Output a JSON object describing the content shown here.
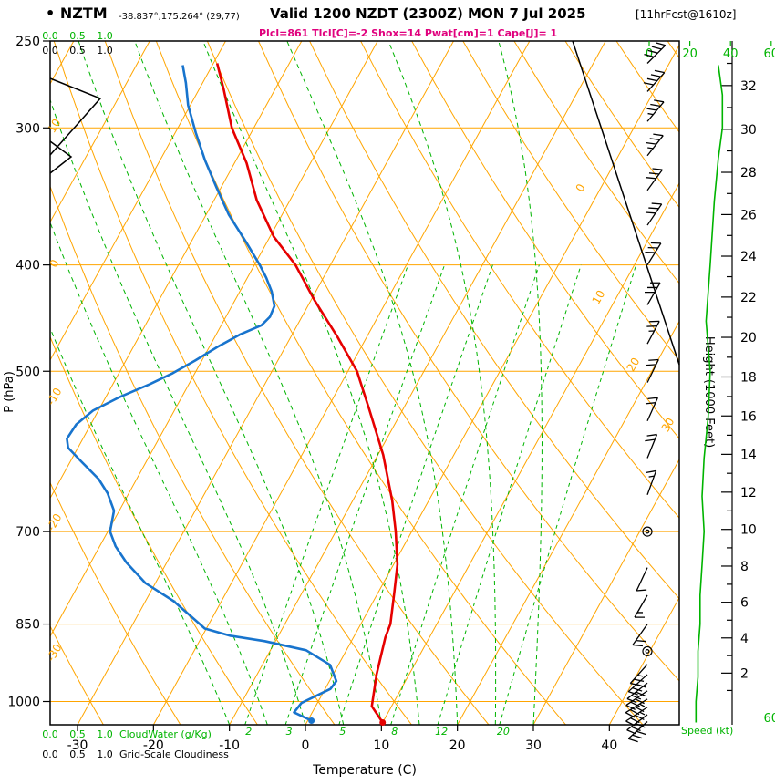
{
  "header": {
    "bullet": "•",
    "model": "NZTM",
    "location": "-38.837°,175.264° (29,77)",
    "valid": "Valid 1200 NZDT (2300Z) MON 7 Jul 2025",
    "fcst": "[11hrFcst@1610z]",
    "params": "Plcl=861 Tlcl[C]=-2 Shox=14 Pwat[cm]=1 Cape[J]= 1"
  },
  "axes": {
    "pressure_label": "P (hPa)",
    "temperature_label": "Temperature (C)",
    "height_label": "Height (1000 Feet)",
    "speed_label": "Speed (kt)",
    "cloudwater_label": "CloudWater (g/Kg)",
    "cloudiness_label": "Grid-Scale Cloudiness"
  },
  "chart_data": {
    "type": "line",
    "variant": "skew-t-log-p-sounding",
    "pressure_ticks": [
      250,
      300,
      400,
      500,
      700,
      850,
      1000
    ],
    "temperature_ticks": [
      -30,
      -20,
      -10,
      0,
      10,
      20,
      30,
      40
    ],
    "height_ticks_kft": [
      2,
      4,
      6,
      8,
      10,
      12,
      14,
      16,
      18,
      20,
      22,
      24,
      26,
      28,
      30,
      32
    ],
    "cloud_scale_ticks": [
      "0.0",
      "0.5",
      "1.0"
    ],
    "speed_scale_ticks": [
      0,
      20,
      40,
      60
    ],
    "isotherm_labels": [
      0,
      10,
      20,
      30
    ],
    "theta_labels": [
      10,
      0,
      -10,
      -20,
      -30
    ],
    "mixing_ratio_lines_gkg": [
      2,
      3,
      5,
      8,
      12,
      20
    ],
    "isotherm_step": 10,
    "colors": {
      "grid": "#FFA500",
      "moist": "#00B400",
      "temperature": "#E60000",
      "dewpoint": "#1874CD",
      "speed": "#00B400",
      "barb": "#000000",
      "magenta": "#E0007D"
    },
    "temperature_profile": {
      "pressure": [
        1045,
        1010,
        944,
        874,
        850,
        795,
        750,
        700,
        656,
        596,
        542,
        500,
        465,
        431,
        400,
        377,
        349,
        323,
        300,
        277,
        262
      ],
      "temp_c": [
        10.0,
        7.4,
        5.7,
        4.2,
        3.9,
        2.1,
        0.5,
        -2.1,
        -4.8,
        -9.3,
        -14.4,
        -18.8,
        -23.9,
        -29.5,
        -34.6,
        -39.5,
        -44.4,
        -48.4,
        -52.9,
        -56.7,
        -59.5
      ]
    },
    "dewpoint_profile": {
      "pressure": [
        1041,
        1023,
        1003,
        974,
        958,
        926,
        898,
        881,
        871,
        858,
        842,
        810,
        780,
        747,
        722,
        700,
        670,
        646,
        627,
        604,
        587,
        576,
        559,
        543,
        528,
        514,
        502,
        489,
        475,
        463,
        454,
        446,
        436,
        423,
        411,
        400,
        381,
        360,
        340,
        321,
        303,
        286,
        273,
        263
      ],
      "temp_c": [
        0.5,
        -2.4,
        -2.1,
        0.7,
        0.9,
        -1.1,
        -5.3,
        -11.4,
        -16.4,
        -20.2,
        -22.2,
        -26.3,
        -31.3,
        -35.3,
        -37.9,
        -39.7,
        -40.7,
        -42.8,
        -45.0,
        -48.6,
        -51.3,
        -52.1,
        -51.9,
        -50.7,
        -48.2,
        -45.2,
        -42.9,
        -40.9,
        -38.9,
        -36.9,
        -34.7,
        -34.2,
        -34.4,
        -35.8,
        -37.5,
        -39.3,
        -42.8,
        -47.0,
        -50.6,
        -54.1,
        -57.3,
        -60.3,
        -62.2,
        -63.9
      ]
    },
    "wind_barbs": [
      {
        "p": 262,
        "dir": 45,
        "kt": 40
      },
      {
        "p": 278,
        "dir": 42,
        "kt": 38
      },
      {
        "p": 296,
        "dir": 40,
        "kt": 35
      },
      {
        "p": 318,
        "dir": 38,
        "kt": 35
      },
      {
        "p": 342,
        "dir": 36,
        "kt": 32
      },
      {
        "p": 368,
        "dir": 34,
        "kt": 30
      },
      {
        "p": 400,
        "dir": 32,
        "kt": 30
      },
      {
        "p": 435,
        "dir": 30,
        "kt": 28
      },
      {
        "p": 472,
        "dir": 28,
        "kt": 25
      },
      {
        "p": 512,
        "dir": 26,
        "kt": 22
      },
      {
        "p": 555,
        "dir": 24,
        "kt": 20
      },
      {
        "p": 600,
        "dir": 22,
        "kt": 18
      },
      {
        "p": 648,
        "dir": 20,
        "kt": 15
      },
      {
        "p": 700,
        "dir": 0,
        "kt": 0
      },
      {
        "p": 755,
        "dir": 205,
        "kt": 12
      },
      {
        "p": 800,
        "dir": 210,
        "kt": 15
      },
      {
        "p": 850,
        "dir": 215,
        "kt": 18
      },
      {
        "p": 900,
        "dir": 0,
        "kt": 0
      },
      {
        "p": 925,
        "dir": 222,
        "kt": 25
      },
      {
        "p": 945,
        "dir": 228,
        "kt": 28
      },
      {
        "p": 962,
        "dir": 232,
        "kt": 30
      },
      {
        "p": 978,
        "dir": 236,
        "kt": 32
      },
      {
        "p": 995,
        "dir": 238,
        "kt": 34
      },
      {
        "p": 1012,
        "dir": 237,
        "kt": 34
      },
      {
        "p": 1028,
        "dir": 233,
        "kt": 32
      },
      {
        "p": 1043,
        "dir": 228,
        "kt": 30
      }
    ],
    "speed_profile": {
      "pressure": [
        263,
        280,
        300,
        320,
        350,
        400,
        450,
        500,
        550,
        600,
        650,
        700,
        750,
        800,
        850,
        900,
        950,
        1000,
        1045
      ],
      "kt": [
        34,
        36,
        36,
        34,
        32,
        30,
        28,
        30,
        29,
        27,
        26,
        27,
        26,
        25,
        25,
        24,
        24,
        23,
        23
      ]
    }
  }
}
